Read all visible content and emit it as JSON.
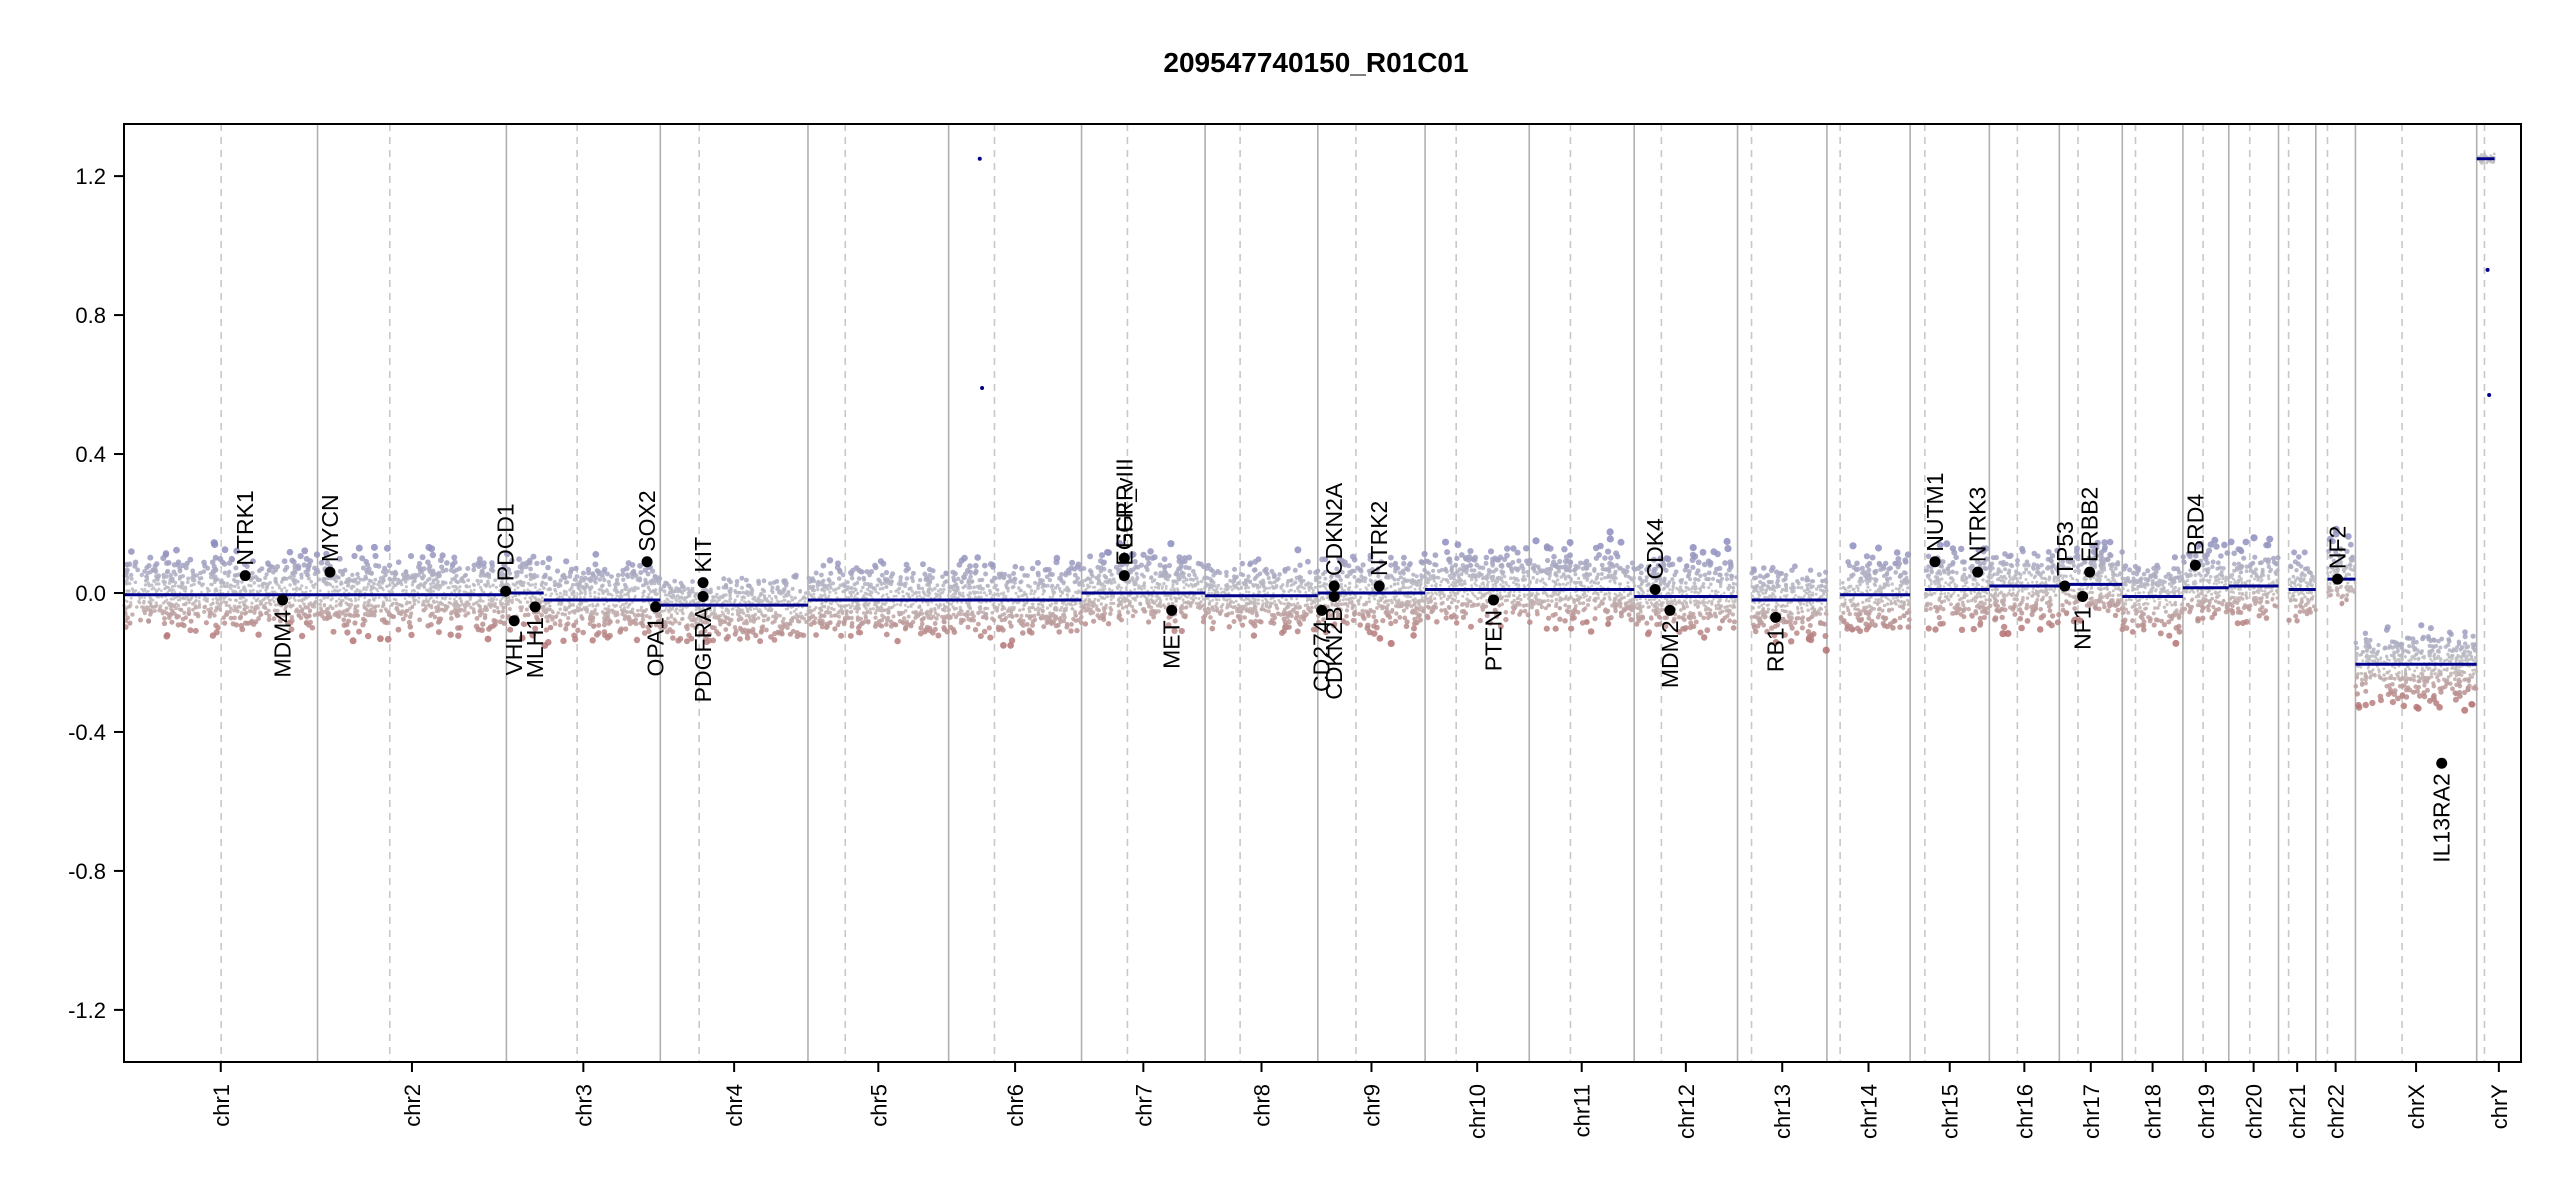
{
  "chart_data": {
    "type": "scatter",
    "title": "209547740150_R01C01",
    "xlabel": "",
    "ylabel": "",
    "ylim": [
      -1.35,
      1.35
    ],
    "yticks": [
      -1.2,
      -0.8,
      -0.4,
      0.0,
      0.4,
      0.8,
      1.2
    ],
    "ytick_labels": [
      "-1.2",
      "-0.8",
      "-0.4",
      "0.0",
      "0.4",
      "0.8",
      "1.2"
    ],
    "colors": {
      "gain": "#8c8cbf",
      "loss": "#b46e6e",
      "neutral": "#c4c4c4",
      "segment": "#00008b",
      "boundary": "#b0b0b0",
      "centromere": "#c8c8c8",
      "gene_marker": "#000000"
    },
    "chromosomes": [
      {
        "name": "chr1",
        "start": 0.0,
        "end": 249.0,
        "centromere": 125.0,
        "segments": [
          {
            "from": 0.0,
            "to": 249.0,
            "value": -0.005
          }
        ],
        "spread_up": 0.17,
        "spread_down": 0.14
      },
      {
        "name": "chr2",
        "start": 249.0,
        "end": 492.0,
        "centromere": 342.0,
        "segments": [
          {
            "from": 249.0,
            "to": 492.0,
            "value": -0.005
          }
        ],
        "spread_up": 0.15,
        "spread_down": 0.14
      },
      {
        "name": "chr3",
        "start": 492.0,
        "end": 690.0,
        "centromere": 583.0,
        "segments": [
          {
            "from": 492.0,
            "to": 540.0,
            "value": 0.0
          },
          {
            "from": 540.0,
            "to": 690.0,
            "value": -0.02
          }
        ],
        "spread_up": 0.15,
        "spread_down": 0.14
      },
      {
        "name": "chr4",
        "start": 690.0,
        "end": 880.0,
        "centromere": 740.0,
        "segments": [
          {
            "from": 690.0,
            "to": 880.0,
            "value": -0.035
          }
        ],
        "spread_up": 0.1,
        "spread_down": 0.14
      },
      {
        "name": "chr5",
        "start": 880.0,
        "end": 1061.0,
        "centromere": 928.0,
        "segments": [
          {
            "from": 880.0,
            "to": 1061.0,
            "value": -0.02
          }
        ],
        "spread_up": 0.13,
        "spread_down": 0.14
      },
      {
        "name": "chr6",
        "start": 1061.0,
        "end": 1232.0,
        "centromere": 1120.0,
        "segments": [
          {
            "from": 1061.0,
            "to": 1232.0,
            "value": -0.02
          }
        ],
        "spread_up": 0.14,
        "spread_down": 0.14
      },
      {
        "name": "chr7",
        "start": 1232.0,
        "end": 1391.0,
        "centromere": 1291.0,
        "segments": [
          {
            "from": 1232.0,
            "to": 1391.0,
            "value": 0.0
          }
        ],
        "spread_up": 0.15,
        "spread_down": 0.12
      },
      {
        "name": "chr8",
        "start": 1391.0,
        "end": 1536.0,
        "centromere": 1436.0,
        "segments": [
          {
            "from": 1391.0,
            "to": 1536.0,
            "value": -0.008
          }
        ],
        "spread_up": 0.14,
        "spread_down": 0.14
      },
      {
        "name": "chr9",
        "start": 1536.0,
        "end": 1674.0,
        "centromere": 1585.0,
        "segments": [
          {
            "from": 1536.0,
            "to": 1674.0,
            "value": 0.0
          }
        ],
        "spread_up": 0.15,
        "spread_down": 0.14
      },
      {
        "name": "chr10",
        "start": 1674.0,
        "end": 1808.0,
        "centromere": 1714.0,
        "segments": [
          {
            "from": 1674.0,
            "to": 1808.0,
            "value": 0.01
          }
        ],
        "spread_up": 0.16,
        "spread_down": 0.14
      },
      {
        "name": "chr11",
        "start": 1808.0,
        "end": 1943.0,
        "centromere": 1861.0,
        "segments": [
          {
            "from": 1808.0,
            "to": 1943.0,
            "value": 0.01
          }
        ],
        "spread_up": 0.17,
        "spread_down": 0.13
      },
      {
        "name": "chr12",
        "start": 1943.0,
        "end": 2076.0,
        "centromere": 1978.0,
        "segments": [
          {
            "from": 1943.0,
            "to": 2076.0,
            "value": -0.01
          }
        ],
        "spread_up": 0.17,
        "spread_down": 0.14
      },
      {
        "name": "chr13",
        "start": 2076.0,
        "end": 2191.0,
        "centromere": 2094.0,
        "segments": [
          {
            "from": 2094.0,
            "to": 2191.0,
            "value": -0.02
          }
        ],
        "spread_up": 0.13,
        "spread_down": 0.15
      },
      {
        "name": "chr14",
        "start": 2191.0,
        "end": 2298.0,
        "centromere": 2208.0,
        "segments": [
          {
            "from": 2208.0,
            "to": 2298.0,
            "value": -0.005
          }
        ],
        "spread_up": 0.15,
        "spread_down": 0.14
      },
      {
        "name": "chr15",
        "start": 2298.0,
        "end": 2400.0,
        "centromere": 2317.0,
        "segments": [
          {
            "from": 2317.0,
            "to": 2400.0,
            "value": 0.01
          }
        ],
        "spread_up": 0.16,
        "spread_down": 0.14
      },
      {
        "name": "chr16",
        "start": 2400.0,
        "end": 2490.0,
        "centromere": 2436.0,
        "segments": [
          {
            "from": 2400.0,
            "to": 2490.0,
            "value": 0.02
          }
        ],
        "spread_up": 0.15,
        "spread_down": 0.15
      },
      {
        "name": "chr17",
        "start": 2490.0,
        "end": 2571.0,
        "centromere": 2514.0,
        "segments": [
          {
            "from": 2490.0,
            "to": 2571.0,
            "value": 0.025
          }
        ],
        "spread_up": 0.17,
        "spread_down": 0.13
      },
      {
        "name": "chr18",
        "start": 2571.0,
        "end": 2649.0,
        "centromere": 2588.0,
        "segments": [
          {
            "from": 2571.0,
            "to": 2649.0,
            "value": -0.01
          }
        ],
        "spread_up": 0.13,
        "spread_down": 0.15
      },
      {
        "name": "chr19",
        "start": 2649.0,
        "end": 2708.0,
        "centromere": 2675.0,
        "segments": [
          {
            "from": 2649.0,
            "to": 2708.0,
            "value": 0.015
          }
        ],
        "spread_up": 0.18,
        "spread_down": 0.13
      },
      {
        "name": "chr20",
        "start": 2708.0,
        "end": 2772.0,
        "centromere": 2735.0,
        "segments": [
          {
            "from": 2708.0,
            "to": 2772.0,
            "value": 0.02
          }
        ],
        "spread_up": 0.17,
        "spread_down": 0.13
      },
      {
        "name": "chr21",
        "start": 2772.0,
        "end": 2820.0,
        "centromere": 2785.0,
        "segments": [
          {
            "from": 2785.0,
            "to": 2820.0,
            "value": 0.01
          }
        ],
        "spread_up": 0.13,
        "spread_down": 0.12
      },
      {
        "name": "chr22",
        "start": 2820.0,
        "end": 2871.0,
        "centromere": 2835.0,
        "segments": [
          {
            "from": 2835.0,
            "to": 2871.0,
            "value": 0.04
          }
        ],
        "spread_up": 0.16,
        "spread_down": 0.1
      },
      {
        "name": "chrX",
        "start": 2871.0,
        "end": 3027.0,
        "centromere": 2931.0,
        "segments": [
          {
            "from": 2871.0,
            "to": 3027.0,
            "value": -0.205
          }
        ],
        "spread_up": 0.12,
        "spread_down": 0.16
      },
      {
        "name": "chrY",
        "start": 3027.0,
        "end": 3084.0,
        "centromere": 3037.0,
        "segments": [
          {
            "from": 3027.0,
            "to": 3050.0,
            "value": 1.25
          }
        ],
        "spread_up": 0.02,
        "spread_down": 0.02
      }
    ],
    "genes": [
      {
        "name": "NTRK1",
        "x": 156.0,
        "y": 0.05,
        "label": "above"
      },
      {
        "name": "MDM4",
        "x": 204.0,
        "y": -0.02,
        "label": "below"
      },
      {
        "name": "MYCN",
        "x": 265.0,
        "y": 0.06,
        "label": "above"
      },
      {
        "name": "PDCD1",
        "x": 491.0,
        "y": 0.005,
        "label": "above"
      },
      {
        "name": "VHL",
        "x": 502.0,
        "y": -0.08,
        "label": "below"
      },
      {
        "name": "MLH1",
        "x": 529.0,
        "y": -0.04,
        "label": "below"
      },
      {
        "name": "SOX2",
        "x": 673.0,
        "y": 0.09,
        "label": "above"
      },
      {
        "name": "OPA1",
        "x": 684.0,
        "y": -0.04,
        "label": "below"
      },
      {
        "name": "KIT",
        "x": 745.0,
        "y": 0.03,
        "label": "above"
      },
      {
        "name": "PDGFRA",
        "x": 745.0,
        "y": -0.01,
        "label": "below"
      },
      {
        "name": "EGFR",
        "x": 1287.0,
        "y": 0.1,
        "label": "above"
      },
      {
        "name": "EGFR_vIII",
        "x": 1287.0,
        "y": 0.05,
        "label": "above"
      },
      {
        "name": "MET",
        "x": 1348.0,
        "y": -0.05,
        "label": "below"
      },
      {
        "name": "CD274",
        "x": 1541.0,
        "y": -0.05,
        "label": "below"
      },
      {
        "name": "CDKN2B",
        "x": 1557.0,
        "y": -0.01,
        "label": "below"
      },
      {
        "name": "CDKN2A",
        "x": 1557.0,
        "y": 0.02,
        "label": "above"
      },
      {
        "name": "NTRK2",
        "x": 1615.0,
        "y": 0.02,
        "label": "above"
      },
      {
        "name": "PTEN",
        "x": 1762.0,
        "y": -0.02,
        "label": "below"
      },
      {
        "name": "CDK4",
        "x": 1970.0,
        "y": 0.01,
        "label": "above"
      },
      {
        "name": "MDM2",
        "x": 1989.0,
        "y": -0.05,
        "label": "below"
      },
      {
        "name": "RB1",
        "x": 2125.0,
        "y": -0.07,
        "label": "below"
      },
      {
        "name": "NUTM1",
        "x": 2330.0,
        "y": 0.09,
        "label": "above"
      },
      {
        "name": "NTRK3",
        "x": 2385.0,
        "y": 0.06,
        "label": "above"
      },
      {
        "name": "TP53",
        "x": 2497.0,
        "y": 0.02,
        "label": "above"
      },
      {
        "name": "NF1",
        "x": 2520.0,
        "y": -0.01,
        "label": "below"
      },
      {
        "name": "ERBB2",
        "x": 2529.0,
        "y": 0.06,
        "label": "above"
      },
      {
        "name": "BRD4",
        "x": 2665.0,
        "y": 0.08,
        "label": "above"
      },
      {
        "name": "NF2",
        "x": 2848.0,
        "y": 0.04,
        "label": "above"
      },
      {
        "name": "IL13RA2",
        "x": 2982.0,
        "y": -0.49,
        "label": "below"
      }
    ],
    "outliers": [
      {
        "x": 1101.0,
        "y": 1.25
      },
      {
        "x": 1104.0,
        "y": 0.59
      },
      {
        "x": 3041.0,
        "y": 0.93
      },
      {
        "x": 3043.0,
        "y": 0.57
      }
    ]
  }
}
